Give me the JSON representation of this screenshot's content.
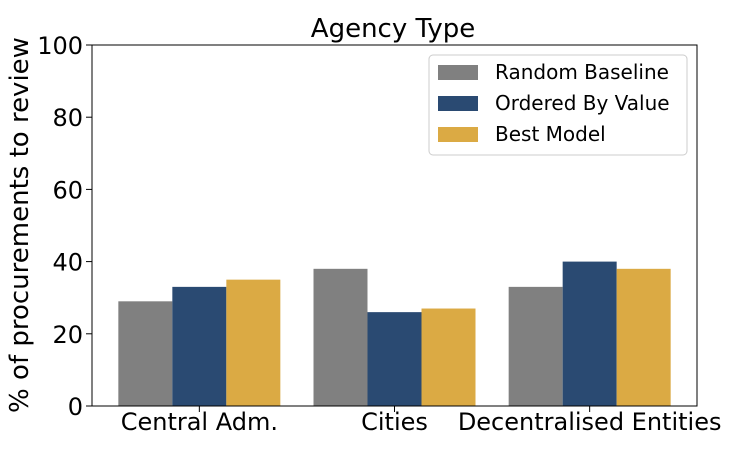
{
  "chart_data": {
    "type": "bar",
    "title": "Agency Type",
    "xlabel": "",
    "ylabel": "% of procurements to review",
    "ylim": [
      0,
      100
    ],
    "yticks": [
      0,
      20,
      40,
      60,
      80,
      100
    ],
    "categories": [
      "Central Adm.",
      "Cities",
      "Decentralised Entities"
    ],
    "series": [
      {
        "name": "Random Baseline",
        "color": "#808080",
        "values": [
          29,
          38,
          33
        ]
      },
      {
        "name": "Ordered By Value",
        "color": "#2a4a72",
        "values": [
          33,
          26,
          40
        ]
      },
      {
        "name": "Best Model",
        "color": "#dbaa44",
        "values": [
          35,
          27,
          38
        ]
      }
    ],
    "grid": false,
    "legend": "top-right"
  }
}
